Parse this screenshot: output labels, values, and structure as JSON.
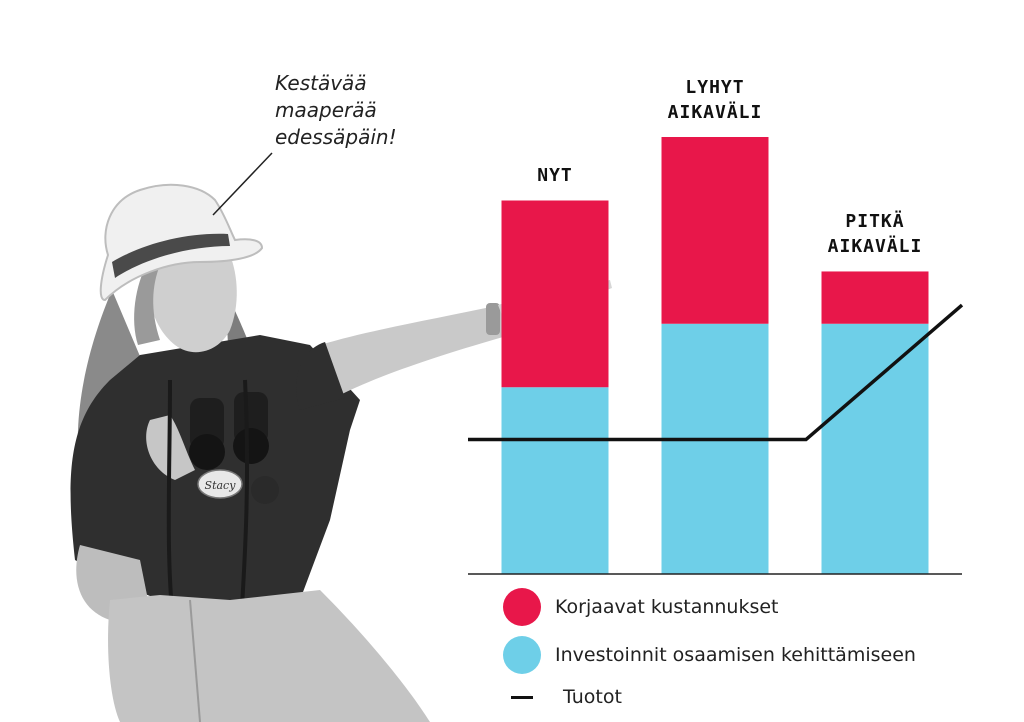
{
  "speech_bubble": {
    "lines": [
      "Kestävää",
      "maaperää",
      "edessäpäin!"
    ]
  },
  "colors": {
    "corrective": "#e8174a",
    "investment": "#6ecfe8",
    "returns": "#111111"
  },
  "icons": {
    "person": "person-with-binoculars-photo"
  },
  "chart_data": {
    "type": "bar",
    "stacked": true,
    "categories": [
      {
        "lines": [
          "NYT"
        ]
      },
      {
        "lines": [
          "LYHYT",
          "AIKAVÄLI"
        ]
      },
      {
        "lines": [
          "PITKÄ",
          "AIKAVÄLI"
        ]
      }
    ],
    "series": [
      {
        "name": "Investoinnit osaamisen kehittämiseen",
        "color": "#6ecfe8",
        "values": [
          50,
          67,
          67
        ]
      },
      {
        "name": "Korjaavat kustannukset",
        "color": "#e8174a",
        "values": [
          50,
          50,
          14
        ]
      }
    ],
    "line_series": {
      "name": "Tuotot",
      "color": "#111111",
      "values": [
        36,
        36,
        36,
        72
      ]
    },
    "ylim": [
      0,
      117
    ],
    "grid": false,
    "legend": {
      "position": "bottom",
      "items": [
        {
          "name": "Korjaavat kustannukset",
          "marker": "circle",
          "color": "#e8174a"
        },
        {
          "name": "Investoinnit osaamisen kehittämiseen",
          "marker": "circle",
          "color": "#6ecfe8"
        },
        {
          "name": "Tuotot",
          "marker": "line",
          "color": "#111111"
        }
      ]
    }
  }
}
